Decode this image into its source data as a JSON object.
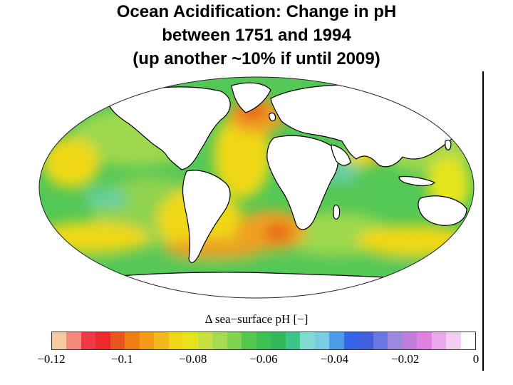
{
  "title": {
    "line1": "Ocean Acidification: Change in pH",
    "line2": "between 1751 and 1994",
    "line3": "(up another ~10% if until 2009)"
  },
  "legend": {
    "label": "Δ sea−surface pH [−]",
    "min": -0.12,
    "max": 0,
    "ticks": [
      "−0.12",
      "−0.1",
      "−0.08",
      "−0.06",
      "−0.04",
      "−0.02",
      "0"
    ],
    "tick_values": [
      -0.12,
      -0.1,
      -0.08,
      -0.06,
      -0.04,
      -0.02,
      0
    ],
    "colors": [
      "#f7caa0",
      "#f58a7a",
      "#ef3a46",
      "#ec2a2a",
      "#e8561c",
      "#f07c14",
      "#f39a18",
      "#f3b81e",
      "#f0d818",
      "#e6e41a",
      "#c8e040",
      "#a8dc50",
      "#7ed450",
      "#55c84c",
      "#3cc050",
      "#34b85c",
      "#3cc48a",
      "#80dcd0",
      "#7ccce0",
      "#4c9ce8",
      "#3464e8",
      "#4060e0",
      "#6878e0",
      "#9c88dc",
      "#c47cdc",
      "#e080e0",
      "#eca8ec",
      "#f2cff2",
      "#ffffff"
    ]
  },
  "map": {
    "projection": "Mollweide",
    "colors": {
      "ocean_green": "#54c856",
      "light_green": "#9ed84e",
      "yellow": "#f0d818",
      "orange": "#f0a020",
      "deep_orange": "#e8601c",
      "teal": "#66cfa0",
      "land": "#ffffff",
      "coast": "#000000"
    }
  }
}
